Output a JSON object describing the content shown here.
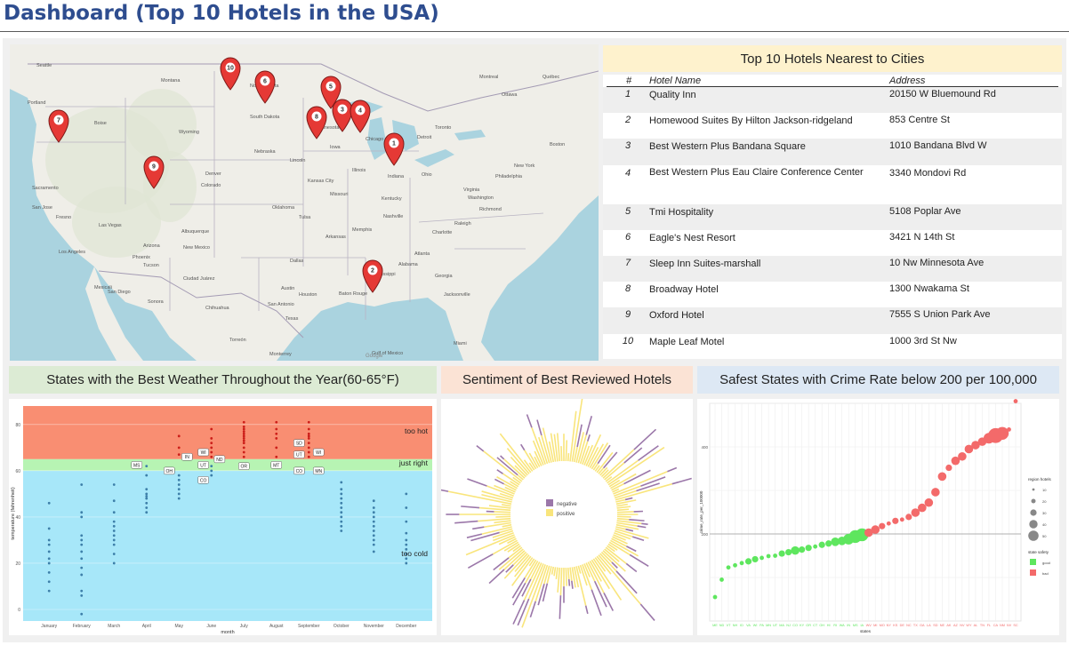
{
  "page": {
    "title": "Dashboard (Top 10 Hotels in the USA)"
  },
  "map": {
    "credit": "Google",
    "pins": [
      {
        "id": "1"
      },
      {
        "id": "2"
      },
      {
        "id": "3"
      },
      {
        "id": "4"
      },
      {
        "id": "5"
      },
      {
        "id": "6"
      },
      {
        "id": "7"
      },
      {
        "id": "8"
      },
      {
        "id": "9"
      },
      {
        "id": "10"
      }
    ],
    "places": [
      "Seattle",
      "Portland",
      "Boise",
      "Montana",
      "North Dakota",
      "South Dakota",
      "Minnesota",
      "Wyoming",
      "Nebraska",
      "Lincoln",
      "Denver",
      "Colorado",
      "Kansas City",
      "Missouri",
      "Sacramento",
      "San Jose",
      "Fresno",
      "Las Vegas",
      "Arizona",
      "Phoenix",
      "Tucson",
      "Los Angeles",
      "San Diego",
      "Mexicali",
      "Albuquerque",
      "New Mexico",
      "Ciudad Juárez",
      "Dallas",
      "Austin",
      "Houston",
      "San Antonio",
      "Baton Rouge",
      "Memphis",
      "Atlanta",
      "Charlotte",
      "Raleigh",
      "Nashville",
      "Chicago",
      "Detroit",
      "Toronto",
      "Montreal",
      "Ottawa",
      "Québec",
      "Boston",
      "New York",
      "Philadelphia",
      "Washington",
      "Richmond",
      "Oklahoma",
      "Tulsa",
      "Arkansas",
      "Alabama",
      "Mississippi",
      "Jacksonville",
      "Miami",
      "Monterrey",
      "Torreón",
      "Chihuahua",
      "Sonora",
      "Durango",
      "Iowa",
      "Illinois",
      "Indiana",
      "Ohio",
      "Kentucky",
      "Virginia",
      "Georgia",
      "Texas",
      "Gulf of Mexico"
    ]
  },
  "hotels": {
    "title": "Top 10 Hotels Nearest to Cities",
    "columns": [
      "#",
      "Hotel Name",
      "Address"
    ],
    "rows": [
      {
        "idx": "1",
        "name": "Quality Inn",
        "address": "20150 W Bluemound Rd"
      },
      {
        "idx": "2",
        "name": "Homewood Suites By Hilton Jackson-ridgeland",
        "address": "853 Centre St"
      },
      {
        "idx": "3",
        "name": "Best Western Plus Bandana Square",
        "address": "1010 Bandana Blvd W"
      },
      {
        "idx": "4",
        "name": "Best Western Plus Eau Claire Conference Center",
        "address": "3340 Mondovi Rd"
      },
      {
        "idx": "5",
        "name": "Tmi Hospitality",
        "address": "5108 Poplar Ave"
      },
      {
        "idx": "6",
        "name": "Eagle's Nest Resort",
        "address": "3421 N 14th St"
      },
      {
        "idx": "7",
        "name": "Sleep Inn Suites-marshall",
        "address": "10 Nw Minnesota Ave"
      },
      {
        "idx": "8",
        "name": "Broadway Hotel",
        "address": "1300 Nwakama St"
      },
      {
        "idx": "9",
        "name": "Oxford Hotel",
        "address": "7555 S Union Park Ave"
      },
      {
        "idx": "10",
        "name": "Maple Leaf Motel",
        "address": "1000 3rd St Nw"
      }
    ]
  },
  "headers": {
    "weather": "States with the Best Weather Throughout the Year(60-65°F)",
    "sentiment": "Sentiment of Best Reviewed Hotels",
    "safety": "Safest States with Crime Rate below 200 per 100,000"
  },
  "chart_data": [
    {
      "type": "scatter",
      "title": "States with the Best Weather Throughout the Year(60-65°F)",
      "xlabel": "month",
      "ylabel": "temperature (fahrenheit)",
      "ylim": [
        -5,
        88
      ],
      "categories": [
        "January",
        "February",
        "March",
        "April",
        "May",
        "June",
        "July",
        "August",
        "September",
        "October",
        "November",
        "December"
      ],
      "bands": [
        {
          "label": "too hot",
          "from": 65,
          "to": 88,
          "color": "#f98e72"
        },
        {
          "label": "just right",
          "from": 60,
          "to": 65,
          "color": "#b7f4b3"
        },
        {
          "label": "too cold",
          "from": -5,
          "to": 60,
          "color": "#a7e7f9"
        }
      ],
      "yticks": [
        0,
        20,
        40,
        60,
        80
      ],
      "series": [
        {
          "color": "#3d7fa9",
          "points": [
            [
              1,
              8
            ],
            [
              1,
              12
            ],
            [
              1,
              16
            ],
            [
              1,
              20
            ],
            [
              1,
              22
            ],
            [
              1,
              25
            ],
            [
              1,
              28
            ],
            [
              1,
              30
            ],
            [
              1,
              35
            ],
            [
              1,
              46
            ],
            [
              2,
              -2
            ],
            [
              2,
              6
            ],
            [
              2,
              8
            ],
            [
              2,
              15
            ],
            [
              2,
              18
            ],
            [
              2,
              22
            ],
            [
              2,
              25
            ],
            [
              2,
              28
            ],
            [
              2,
              30
            ],
            [
              2,
              32
            ],
            [
              2,
              40
            ],
            [
              2,
              42
            ],
            [
              2,
              54
            ],
            [
              3,
              20
            ],
            [
              3,
              24
            ],
            [
              3,
              28
            ],
            [
              3,
              30
            ],
            [
              3,
              32
            ],
            [
              3,
              34
            ],
            [
              3,
              36
            ],
            [
              3,
              38
            ],
            [
              3,
              42
            ],
            [
              3,
              47
            ],
            [
              3,
              54
            ],
            [
              4,
              42
            ],
            [
              4,
              44
            ],
            [
              4,
              46
            ],
            [
              4,
              48
            ],
            [
              4,
              49
            ],
            [
              4,
              50
            ],
            [
              4,
              52
            ],
            [
              4,
              58
            ],
            [
              4,
              62
            ],
            [
              5,
              48
            ],
            [
              5,
              50
            ],
            [
              5,
              52
            ],
            [
              5,
              54
            ],
            [
              5,
              56
            ],
            [
              5,
              58
            ],
            [
              6,
              58
            ],
            [
              6,
              60
            ],
            [
              6,
              62
            ],
            [
              10,
              34
            ],
            [
              10,
              36
            ],
            [
              10,
              38
            ],
            [
              10,
              40
            ],
            [
              10,
              42
            ],
            [
              10,
              44
            ],
            [
              10,
              46
            ],
            [
              10,
              48
            ],
            [
              10,
              50
            ],
            [
              10,
              52
            ],
            [
              10,
              55
            ],
            [
              11,
              25
            ],
            [
              11,
              28
            ],
            [
              11,
              30
            ],
            [
              11,
              32
            ],
            [
              11,
              34
            ],
            [
              11,
              36
            ],
            [
              11,
              38
            ],
            [
              11,
              40
            ],
            [
              11,
              42
            ],
            [
              11,
              44
            ],
            [
              11,
              47
            ],
            [
              12,
              20
            ],
            [
              12,
              22
            ],
            [
              12,
              24
            ],
            [
              12,
              26
            ],
            [
              12,
              28
            ],
            [
              12,
              30
            ],
            [
              12,
              33
            ],
            [
              12,
              38
            ],
            [
              12,
              44
            ],
            [
              12,
              50
            ]
          ]
        },
        {
          "color": "#cc1f1a",
          "points": [
            [
              5,
              67
            ],
            [
              5,
              70
            ],
            [
              5,
              75
            ],
            [
              6,
              66
            ],
            [
              6,
              68
            ],
            [
              6,
              70
            ],
            [
              6,
              72
            ],
            [
              6,
              74
            ],
            [
              6,
              78
            ],
            [
              7,
              66
            ],
            [
              7,
              68
            ],
            [
              7,
              70
            ],
            [
              7,
              72
            ],
            [
              7,
              73
            ],
            [
              7,
              74
            ],
            [
              7,
              75
            ],
            [
              7,
              76
            ],
            [
              7,
              77
            ],
            [
              7,
              78
            ],
            [
              7,
              79
            ],
            [
              7,
              81
            ],
            [
              8,
              66
            ],
            [
              8,
              70
            ],
            [
              8,
              74
            ],
            [
              8,
              76
            ],
            [
              8,
              78
            ],
            [
              8,
              81
            ],
            [
              9,
              66
            ],
            [
              9,
              68
            ],
            [
              9,
              70
            ],
            [
              9,
              72
            ],
            [
              9,
              74
            ],
            [
              9,
              75
            ],
            [
              9,
              76
            ],
            [
              9,
              78
            ],
            [
              9,
              81
            ]
          ]
        }
      ],
      "labels": [
        {
          "text": "MS",
          "x": 3.7,
          "y": 62.5
        },
        {
          "text": "OH",
          "x": 4.7,
          "y": 60
        },
        {
          "text": "IN",
          "x": 5.25,
          "y": 66
        },
        {
          "text": "WI",
          "x": 5.75,
          "y": 68
        },
        {
          "text": "UT",
          "x": 5.75,
          "y": 62.5
        },
        {
          "text": "ND",
          "x": 6.25,
          "y": 65
        },
        {
          "text": "CO",
          "x": 5.75,
          "y": 56
        },
        {
          "text": "OR",
          "x": 7,
          "y": 62
        },
        {
          "text": "MT",
          "x": 8,
          "y": 62.5
        },
        {
          "text": "SD",
          "x": 8.7,
          "y": 72
        },
        {
          "text": "UT",
          "x": 8.7,
          "y": 67
        },
        {
          "text": "WI",
          "x": 9.3,
          "y": 68
        },
        {
          "text": "CO",
          "x": 8.7,
          "y": 60
        },
        {
          "text": "MN",
          "x": 9.3,
          "y": 60
        }
      ],
      "band_labels": [
        "too hot",
        "just right",
        "too cold"
      ]
    },
    {
      "type": "bar",
      "layout": "radial",
      "title": "Sentiment of Best Reviewed Hotels",
      "legend": [
        "negative",
        "positive"
      ],
      "colors": {
        "negative": "#9b77a9",
        "positive": "#f9e57c"
      }
    },
    {
      "type": "scatter",
      "title": "Safest States with Crime Rate below 200 per 100,000",
      "xlabel": "states",
      "ylabel": "crime_rate_per_100000",
      "ylim": [
        0,
        500
      ],
      "yticks": [
        200,
        400
      ],
      "reference_line": 200,
      "legend_size_title": "region hotels",
      "size_levels": [
        10,
        20,
        30,
        40,
        50
      ],
      "legend_color_title": "state safety",
      "safety_levels": [
        {
          "label": "good",
          "color": "#5ee65e"
        },
        {
          "label": "bad",
          "color": "#f36a6a"
        }
      ],
      "categories": [
        "ME",
        "ND",
        "VT",
        "NH",
        "ID",
        "VA",
        "WI",
        "PA",
        "MN",
        "UT",
        "MA",
        "NJ",
        "CO",
        "KY",
        "OR",
        "CT",
        "OH",
        "HI",
        "RI",
        "WA",
        "IN",
        "MS",
        "IA",
        "WV",
        "MI",
        "MO",
        "NY",
        "KS",
        "DE",
        "NC",
        "TX",
        "GA",
        "LA",
        "SD",
        "NE",
        "AK",
        "AZ",
        "NV",
        "WY",
        "AL",
        "TN",
        "FL",
        "CA",
        "NM",
        "NV",
        "SC"
      ],
      "values": [
        55,
        95,
        123,
        128,
        133,
        137,
        142,
        145,
        149,
        150,
        155,
        158,
        162,
        164,
        168,
        171,
        175,
        178,
        182,
        184,
        188,
        194,
        198,
        203,
        210,
        218,
        224,
        230,
        233,
        239,
        249,
        260,
        272,
        296,
        332,
        352,
        368,
        378,
        395,
        404,
        412,
        420,
        426,
        431,
        440,
        505
      ],
      "sizes": [
        1,
        1,
        1,
        1,
        1,
        2,
        2,
        1,
        1,
        1,
        2,
        2,
        3,
        2,
        2,
        1,
        2,
        2,
        3,
        3,
        4,
        5,
        5,
        3,
        3,
        2,
        1,
        2,
        1,
        2,
        3,
        3,
        3,
        3,
        3,
        2,
        3,
        3,
        3,
        3,
        3,
        4,
        6,
        5,
        1,
        1
      ]
    }
  ]
}
